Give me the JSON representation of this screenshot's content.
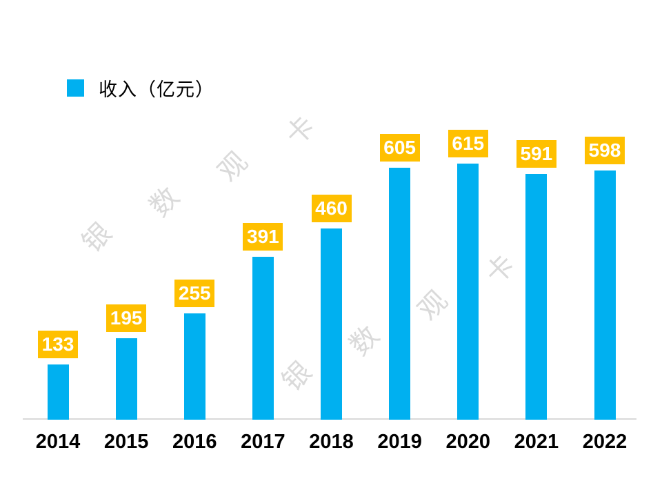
{
  "chart_data": {
    "type": "bar",
    "title": "",
    "categories": [
      "2014",
      "2015",
      "2016",
      "2017",
      "2018",
      "2019",
      "2020",
      "2021",
      "2022"
    ],
    "values": [
      133,
      195,
      255,
      391,
      460,
      605,
      615,
      591,
      598
    ],
    "series_name": "收入（亿元）",
    "legend": {
      "label": "收入（亿元）",
      "position": "top-left"
    },
    "bar_color": "#00B0F0",
    "data_labels": {
      "visible": true,
      "bg_color": "#FFC000",
      "text_color": "#FFFFFF"
    },
    "x_axis": {
      "line_color": "#D9D9D9",
      "tick_label_color": "#000000"
    },
    "y_axis_visible": false,
    "grid": false
  },
  "watermark": {
    "text": "银数观卡",
    "chars": [
      "银",
      "数",
      "观",
      "卡"
    ],
    "color": "#D4D4D4"
  }
}
